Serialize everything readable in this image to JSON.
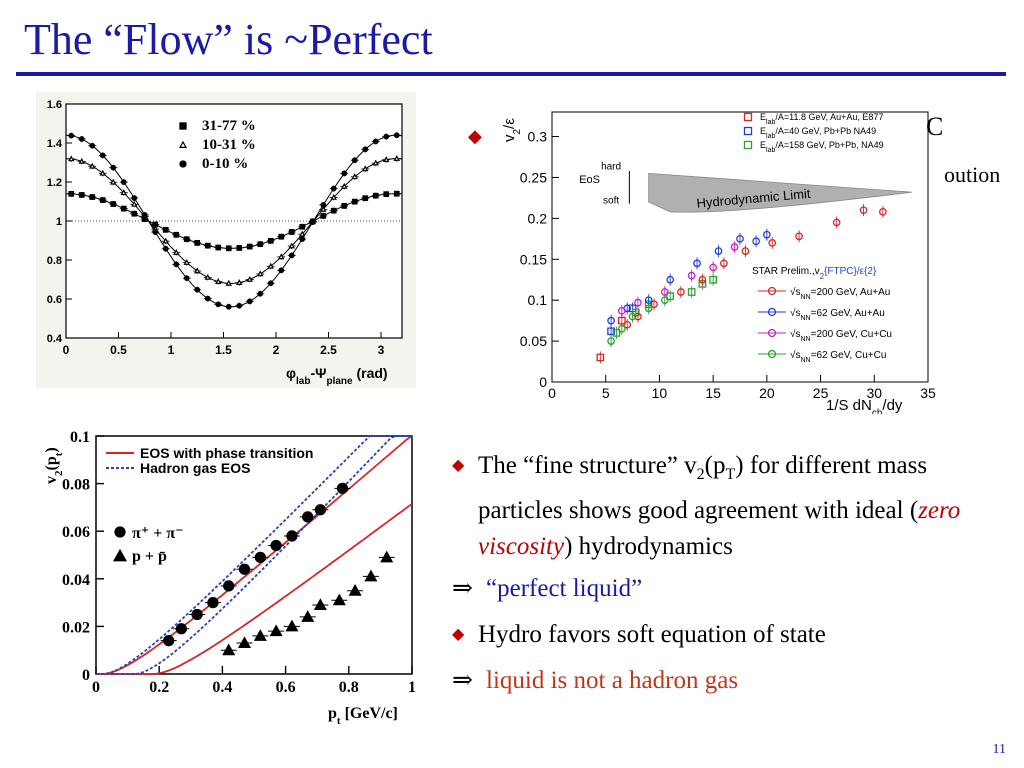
{
  "slide": {
    "title": "The “Flow” is  ~Perfect",
    "page_number": "11",
    "partial_text_1": "C",
    "partial_text_2": "oution",
    "bullets": [
      {
        "marker": "◆",
        "parts": [
          "The “fine structure” v",
          "2",
          "(p",
          "T",
          ") for different mass particles shows good agreement with ideal (",
          "zero viscosity",
          ") hydrodynamics"
        ]
      },
      {
        "marker": "⇒",
        "text": "“perfect liquid”"
      },
      {
        "marker": "◆",
        "text": "Hydro favors soft equation of state"
      },
      {
        "marker": "⇒",
        "text": "liquid is not a hadron gas"
      }
    ]
  },
  "chart_data": [
    {
      "type": "scatter",
      "id": "azimuthal",
      "x_ticks": [
        "0",
        "0.5",
        "1",
        "1.5",
        "2",
        "2.5",
        "3"
      ],
      "y_ticks": [
        "0.4",
        "0.6",
        "0.8",
        "1",
        "1.2",
        "1.4",
        "1.6"
      ],
      "xlim": [
        0,
        3.2
      ],
      "ylim": [
        0.4,
        1.6
      ],
      "xlabel_parts": [
        "φ",
        "lab",
        "-Ψ",
        "plane",
        " (rad)"
      ],
      "reference_line_y": 1,
      "series": [
        {
          "name": "31-77 %",
          "marker": "square",
          "v2": 0.07
        },
        {
          "name": "10-31 %",
          "marker": "triangle",
          "v2": 0.16
        },
        {
          "name": "0-10 %",
          "marker": "circle",
          "v2": 0.22
        }
      ]
    },
    {
      "type": "scatter",
      "id": "v2_over_eps",
      "xlim": [
        0,
        35
      ],
      "ylim": [
        0,
        0.33
      ],
      "x_ticks": [
        "0",
        "5",
        "10",
        "15",
        "20",
        "25",
        "30",
        "35"
      ],
      "y_ticks": [
        "0",
        "0.05",
        "0.1",
        "0.15",
        "0.2",
        "0.25",
        "0.3"
      ],
      "xlabel": "1/S dN",
      "xlabel_sub": "ch",
      "xlabel_tail": "/dy",
      "ylabel": "v",
      "ylabel_sub": "2",
      "ylabel_tail": "/ε",
      "hydro_label": "Hydrodynamic Limit",
      "eos_labels": [
        "hard",
        "EoS",
        "soft"
      ],
      "star_label_1": "STAR Prelim.,v",
      "star_label_sub": "2",
      "star_label_2": "{FTPC}/ε{2}",
      "legend_top": [
        {
          "pre": "E",
          "sub": "lab",
          "text": "/A=11.8 GeV, Au+Au, E877",
          "color": "#d62728",
          "marker": "square"
        },
        {
          "pre": "E",
          "sub": "lab",
          "text": "/A=40 GeV, Pb+Pb NA49",
          "color": "#1f3fd0",
          "marker": "square"
        },
        {
          "pre": "E",
          "sub": "lab",
          "text": "/A=158 GeV, Pb+Pb, NA49",
          "color": "#2ca02c",
          "marker": "square"
        }
      ],
      "legend_bottom": [
        {
          "energy": "200",
          "text": " GeV, Au+Au",
          "color": "#d62728"
        },
        {
          "energy": "62",
          "text": " GeV, Au+Au",
          "color": "#1f3fd0"
        },
        {
          "energy": "200",
          "text": " GeV, Cu+Cu",
          "color": "#c020c0"
        },
        {
          "energy": "62",
          "text": " GeV, Cu+Cu",
          "color": "#2ca02c"
        }
      ],
      "series": [
        {
          "name": "E877 Au+Au 11.8 GeV",
          "color": "#d62728",
          "marker": "square",
          "x": [
            4.5,
            6.5
          ],
          "y": [
            0.03,
            0.075
          ]
        },
        {
          "name": "NA49 Pb+Pb 40 GeV",
          "color": "#1f3fd0",
          "marker": "square",
          "x": [
            5.5,
            7.5
          ],
          "y": [
            0.062,
            0.09
          ]
        },
        {
          "name": "NA49 Pb+Pb 158 GeV",
          "color": "#2ca02c",
          "marker": "square",
          "x": [
            6,
            7.8,
            9,
            11,
            13,
            14,
            15
          ],
          "y": [
            0.06,
            0.085,
            0.095,
            0.105,
            0.11,
            0.12,
            0.125
          ]
        },
        {
          "name": "200 GeV Au+Au",
          "color": "#d62728",
          "marker": "circle",
          "x": [
            7,
            8,
            9.5,
            12,
            14,
            16,
            18,
            20.5,
            23,
            26.5,
            29,
            30.8
          ],
          "y": [
            0.07,
            0.08,
            0.095,
            0.11,
            0.125,
            0.145,
            0.16,
            0.17,
            0.178,
            0.195,
            0.21,
            0.208
          ]
        },
        {
          "name": "62 GeV Au+Au",
          "color": "#1f3fd0",
          "marker": "circle",
          "x": [
            5.5,
            7,
            9,
            11,
            13.5,
            15.5,
            17.5,
            19,
            20
          ],
          "y": [
            0.075,
            0.09,
            0.1,
            0.125,
            0.145,
            0.16,
            0.175,
            0.172,
            0.18
          ]
        },
        {
          "name": "200 GeV Cu+Cu",
          "color": "#c020c0",
          "marker": "circle",
          "x": [
            6.5,
            8,
            10.5,
            13,
            15,
            17
          ],
          "y": [
            0.087,
            0.097,
            0.11,
            0.13,
            0.14,
            0.165
          ]
        },
        {
          "name": "62 GeV Cu+Cu",
          "color": "#2ca02c",
          "marker": "circle",
          "x": [
            5.5,
            6.5,
            7.5,
            9,
            10.5
          ],
          "y": [
            0.05,
            0.065,
            0.08,
            0.09,
            0.1
          ]
        }
      ]
    },
    {
      "type": "scatter",
      "id": "v2_pt",
      "xlim": [
        0,
        1
      ],
      "ylim": [
        0,
        0.1
      ],
      "x_ticks": [
        "0",
        "0.2",
        "0.4",
        "0.6",
        "0.8",
        "1"
      ],
      "y_ticks": [
        "0",
        "0.02",
        "0.04",
        "0.06",
        "0.08",
        "0.1"
      ],
      "xlabel": "p",
      "xlabel_sub": "t",
      "xlabel_tail": " [GeV/c]",
      "ylabel": "v",
      "ylabel_sub": "2",
      "ylabel_tail": "(p",
      "ylabel_sub2": "t",
      "ylabel_end": ")",
      "legend": [
        "EOS with phase transition",
        "Hadron gas EOS"
      ],
      "marker_labels": [
        "π⁺ + π⁻",
        "p + p̄"
      ],
      "series": [
        {
          "name": "π⁺ + π⁻",
          "marker": "circle",
          "x": [
            0.23,
            0.27,
            0.32,
            0.37,
            0.42,
            0.47,
            0.52,
            0.57,
            0.62,
            0.67,
            0.71,
            0.78
          ],
          "y": [
            0.014,
            0.019,
            0.025,
            0.03,
            0.037,
            0.044,
            0.049,
            0.054,
            0.058,
            0.066,
            0.069,
            0.078
          ]
        },
        {
          "name": "p + p̄",
          "marker": "triangle",
          "x": [
            0.42,
            0.47,
            0.52,
            0.57,
            0.62,
            0.67,
            0.71,
            0.77,
            0.82,
            0.87,
            0.92
          ],
          "y": [
            0.01,
            0.013,
            0.016,
            0.018,
            0.02,
            0.024,
            0.029,
            0.031,
            0.035,
            0.041,
            0.049
          ]
        }
      ]
    }
  ]
}
